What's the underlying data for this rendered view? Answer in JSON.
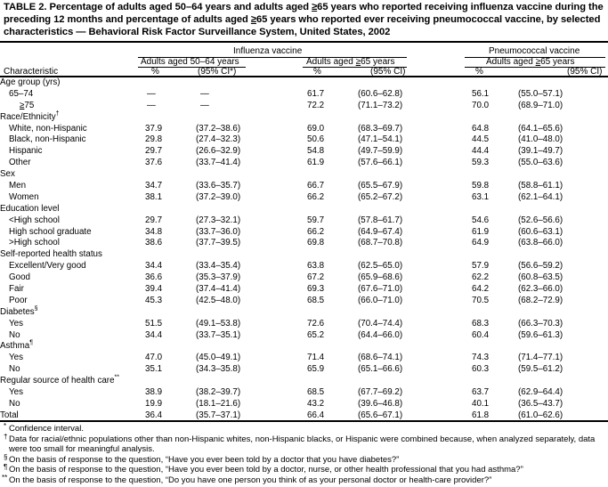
{
  "title": {
    "p1": "TABLE 2. Percentage of adults aged 50–64 years and adults aged ",
    "s1": "≥",
    "p2": "65 years who reported receiving influenza vaccine during the preceding 12 months and percentage of adults aged ",
    "s2": "≥",
    "p3": "65 years who reported ever receiving pneumococcal vaccine, by selected characteristics — Behavioral Risk Factor Surveillance System, United States, 2002"
  },
  "header": {
    "influenza": "Influenza vaccine",
    "pneumococcal": "Pneumococcal vaccine",
    "group1": "Adults aged 50–64 years",
    "group2": {
      "pre": "Adults aged ",
      "sym": "≥",
      "post": "65 years"
    },
    "group3": {
      "pre": "Adults aged ",
      "sym": "≥",
      "post": "65 years"
    },
    "characteristic": "Characteristic",
    "pct": "%",
    "ci_first": "(95% CI*)",
    "ci": "(95% CI)"
  },
  "rows": [
    {
      "label": "Age group (yrs)",
      "level": 0
    },
    {
      "label": "65–74",
      "level": 1,
      "v": [
        "—",
        "—",
        "61.7",
        "(60.6–62.8)",
        "56.1",
        "(55.0–57.1)"
      ]
    },
    {
      "label": "75",
      "sym": "≥",
      "level": 2,
      "v": [
        "—",
        "—",
        "72.2",
        "(71.1–73.2)",
        "70.0",
        "(68.9–71.0)"
      ]
    },
    {
      "label": "Race/Ethnicity",
      "sup": "†",
      "level": 0
    },
    {
      "label": "White, non-Hispanic",
      "level": 1,
      "v": [
        "37.9",
        "(37.2–38.6)",
        "69.0",
        "(68.3–69.7)",
        "64.8",
        "(64.1–65.6)"
      ]
    },
    {
      "label": "Black, non-Hispanic",
      "level": 1,
      "v": [
        "29.8",
        "(27.4–32.3)",
        "50.6",
        "(47.1–54.1)",
        "44.5",
        "(41.0–48.0)"
      ]
    },
    {
      "label": "Hispanic",
      "level": 1,
      "v": [
        "29.7",
        "(26.6–32.9)",
        "54.8",
        "(49.7–59.9)",
        "44.4",
        "(39.1–49.7)"
      ]
    },
    {
      "label": "Other",
      "level": 1,
      "v": [
        "37.6",
        "(33.7–41.4)",
        "61.9",
        "(57.6–66.1)",
        "59.3",
        "(55.0–63.6)"
      ]
    },
    {
      "label": "Sex",
      "level": 0
    },
    {
      "label": "Men",
      "level": 1,
      "v": [
        "34.7",
        "(33.6–35.7)",
        "66.7",
        "(65.5–67.9)",
        "59.8",
        "(58.8–61.1)"
      ]
    },
    {
      "label": "Women",
      "level": 1,
      "v": [
        "38.1",
        "(37.2–39.0)",
        "66.2",
        "(65.2–67.2)",
        "63.1",
        "(62.1–64.1)"
      ]
    },
    {
      "label": "Education level",
      "level": 0
    },
    {
      "label": "<High school",
      "level": 1,
      "v": [
        "29.7",
        "(27.3–32.1)",
        "59.7",
        "(57.8–61.7)",
        "54.6",
        "(52.6–56.6)"
      ]
    },
    {
      "label": "High school graduate",
      "level": 1,
      "v": [
        "34.8",
        "(33.7–36.0)",
        "66.2",
        "(64.9–67.4)",
        "61.9",
        "(60.6–63.1)"
      ]
    },
    {
      "label": ">High school",
      "level": 1,
      "v": [
        "38.6",
        "(37.7–39.5)",
        "69.8",
        "(68.7–70.8)",
        "64.9",
        "(63.8–66.0)"
      ]
    },
    {
      "label": "Self-reported health status",
      "level": 0
    },
    {
      "label": "Excellent/Very good",
      "level": 1,
      "v": [
        "34.4",
        "(33.4–35.4)",
        "63.8",
        "(62.5–65.0)",
        "57.9",
        "(56.6–59.2)"
      ]
    },
    {
      "label": "Good",
      "level": 1,
      "v": [
        "36.6",
        "(35.3–37.9)",
        "67.2",
        "(65.9–68.6)",
        "62.2",
        "(60.8–63.5)"
      ]
    },
    {
      "label": "Fair",
      "level": 1,
      "v": [
        "39.4",
        "(37.4–41.4)",
        "69.3",
        "(67.6–71.0)",
        "64.2",
        "(62.3–66.0)"
      ]
    },
    {
      "label": "Poor",
      "level": 1,
      "v": [
        "45.3",
        "(42.5–48.0)",
        "68.5",
        "(66.0–71.0)",
        "70.5",
        "(68.2–72.9)"
      ]
    },
    {
      "label": "Diabetes",
      "sup": "§",
      "level": 0
    },
    {
      "label": "Yes",
      "level": 1,
      "v": [
        "51.5",
        "(49.1–53.8)",
        "72.6",
        "(70.4–74.4)",
        "68.3",
        "(66.3–70.3)"
      ]
    },
    {
      "label": "No",
      "level": 1,
      "v": [
        "34.4",
        "(33.7–35.1)",
        "65.2",
        "(64.4–66.0)",
        "60.4",
        "(59.6–61.3)"
      ]
    },
    {
      "label": "Asthma",
      "sup": "¶",
      "level": 0
    },
    {
      "label": "Yes",
      "level": 1,
      "v": [
        "47.0",
        "(45.0–49.1)",
        "71.4",
        "(68.6–74.1)",
        "74.3",
        "(71.4–77.1)"
      ]
    },
    {
      "label": "No",
      "level": 1,
      "v": [
        "35.1",
        "(34.3–35.8)",
        "65.9",
        "(65.1–66.6)",
        "60.3",
        "(59.5–61.2)"
      ]
    },
    {
      "label": "Regular source of health care",
      "sup": "**",
      "level": 0
    },
    {
      "label": "Yes",
      "level": 1,
      "v": [
        "38.9",
        "(38.2–39.7)",
        "68.5",
        "(67.7–69.2)",
        "63.7",
        "(62.9–64.4)"
      ]
    },
    {
      "label": "No",
      "level": 1,
      "v": [
        "19.9",
        "(18.1–21.6)",
        "43.2",
        "(39.6–46.8)",
        "40.1",
        "(36.5–43.7)"
      ]
    },
    {
      "label": "Total",
      "level": 0,
      "v": [
        "36.4",
        "(35.7–37.1)",
        "66.4",
        "(65.6–67.1)",
        "61.8",
        "(61.0–62.6)"
      ]
    }
  ],
  "footnotes": [
    {
      "mark": "*",
      "text": "Confidence interval."
    },
    {
      "mark": "†",
      "text": "Data for racial/ethnic populations other than non-Hispanic whites, non-Hispanic blacks, or Hispanic were combined because, when analyzed separately, data were too small for meaningful analysis."
    },
    {
      "mark": "§",
      "text": "On the basis of response to the question, “Have you ever been told by a doctor that you have diabetes?”"
    },
    {
      "mark": "¶",
      "text": "On the basis of response to the question, “Have you ever been told by a doctor, nurse, or other health professional that you had asthma?”"
    },
    {
      "mark": "**",
      "text": "On the basis of response to the question, “Do you have one person you think of as your personal doctor or health-care provider?”"
    }
  ]
}
